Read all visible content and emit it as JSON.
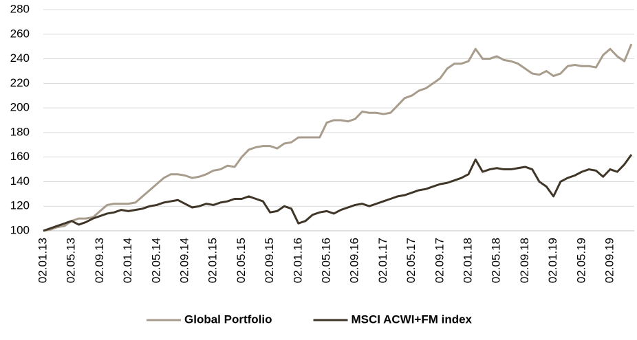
{
  "chart_data": {
    "type": "line",
    "categories": [
      "02.01.13",
      null,
      null,
      null,
      "02.05.13",
      null,
      null,
      null,
      "02.09.13",
      null,
      null,
      null,
      "02.01.14",
      null,
      null,
      null,
      "02.05.14",
      null,
      null,
      null,
      "02.09.14",
      null,
      null,
      null,
      "02.01.15",
      null,
      null,
      null,
      "02.05.15",
      null,
      null,
      null,
      "02.09.15",
      null,
      null,
      null,
      "02.01.16",
      null,
      null,
      null,
      "02.05.16",
      null,
      null,
      null,
      "02.09.16",
      null,
      null,
      null,
      "02.01.17",
      null,
      null,
      null,
      "02.05.17",
      null,
      null,
      null,
      "02.09.17",
      null,
      null,
      null,
      "02.01.18",
      null,
      null,
      null,
      "02.05.18",
      null,
      null,
      null,
      "02.09.18",
      null,
      null,
      null,
      "02.01.19",
      null,
      null,
      null,
      "02.05.19",
      null,
      null,
      null,
      "02.09.19",
      null,
      null,
      null
    ],
    "series": [
      {
        "name": "Global Portfolio",
        "color": "#a89c8c",
        "values": [
          100,
          101,
          103,
          104,
          108,
          110,
          110,
          111,
          116,
          121,
          122,
          122,
          122,
          123,
          128,
          133,
          138,
          143,
          146,
          146,
          145,
          143,
          144,
          146,
          149,
          150,
          153,
          152,
          160,
          166,
          168,
          169,
          169,
          167,
          171,
          172,
          176,
          176,
          176,
          176,
          188,
          190,
          190,
          189,
          191,
          197,
          196,
          196,
          195,
          196,
          202,
          208,
          210,
          214,
          216,
          220,
          224,
          232,
          236,
          236,
          238,
          248,
          240,
          240,
          242,
          239,
          238,
          236,
          232,
          228,
          227,
          230,
          226,
          228,
          234,
          235,
          234,
          234,
          233,
          243,
          248,
          242,
          238,
          252
        ]
      },
      {
        "name": "MSCI ACWI+FM index",
        "color": "#3f3628",
        "values": [
          100,
          102,
          104,
          106,
          108,
          105,
          107,
          110,
          112,
          114,
          115,
          117,
          116,
          117,
          118,
          120,
          121,
          123,
          124,
          125,
          122,
          119,
          120,
          122,
          121,
          123,
          124,
          126,
          126,
          128,
          126,
          124,
          115,
          116,
          120,
          118,
          106,
          108,
          113,
          115,
          116,
          114,
          117,
          119,
          121,
          122,
          120,
          122,
          124,
          126,
          128,
          129,
          131,
          133,
          134,
          136,
          138,
          139,
          141,
          143,
          146,
          158,
          148,
          150,
          151,
          150,
          150,
          151,
          152,
          150,
          140,
          136,
          128,
          140,
          143,
          145,
          148,
          150,
          149,
          144,
          150,
          148,
          154,
          162
        ]
      }
    ],
    "ylim": [
      100,
      280
    ],
    "yticks": [
      100,
      120,
      140,
      160,
      180,
      200,
      220,
      240,
      260,
      280
    ],
    "grid": true,
    "legend": "bottom"
  }
}
